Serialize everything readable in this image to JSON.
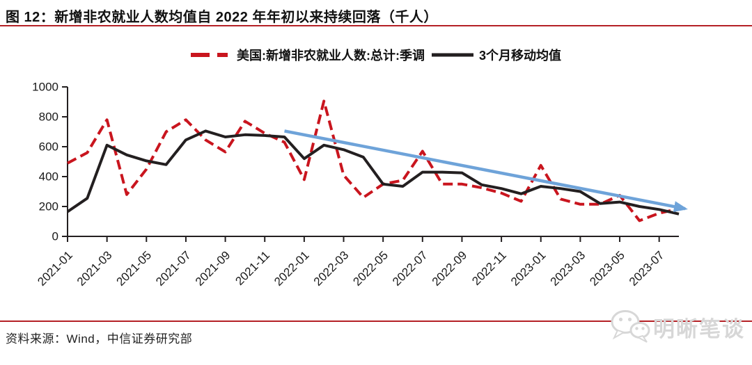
{
  "title": "图 12：新增非农就业人数均值自 2022 年年初以来持续回落（千人）",
  "footer_source": "资料来源：Wind，中信证券研究部",
  "watermark_text": "明晰笔谈",
  "colors": {
    "series_red": "#c9151e",
    "series_black": "#231f20",
    "trend_arrow_blue": "#6ea3d9",
    "rule_red": "#b42025",
    "watermark_gray": "#d7d7d7"
  },
  "chart_data": {
    "type": "line",
    "title": "新增非农就业人数均值自 2022 年年初以来持续回落（千人）",
    "unit": "千人",
    "x": [
      "2021-01",
      "2021-02",
      "2021-03",
      "2021-04",
      "2021-05",
      "2021-06",
      "2021-07",
      "2021-08",
      "2021-09",
      "2021-10",
      "2021-11",
      "2021-12",
      "2022-01",
      "2022-02",
      "2022-03",
      "2022-04",
      "2022-05",
      "2022-06",
      "2022-07",
      "2022-08",
      "2022-09",
      "2022-10",
      "2022-11",
      "2022-12",
      "2023-01",
      "2023-02",
      "2023-03",
      "2023-04",
      "2023-05",
      "2023-06",
      "2023-07",
      "2023-08"
    ],
    "series": [
      {
        "name": "美国:新增非农就业人数:总计:季调",
        "color": "#c9151e",
        "dash": true,
        "values": [
          490,
          560,
          780,
          280,
          450,
          700,
          780,
          645,
          565,
          770,
          690,
          630,
          380,
          905,
          410,
          260,
          350,
          375,
          570,
          350,
          350,
          325,
          290,
          235,
          475,
          250,
          215,
          215,
          275,
          105,
          155,
          185
        ]
      },
      {
        "name": "3个月移动均值",
        "color": "#231f20",
        "dash": false,
        "values": [
          165,
          255,
          610,
          545,
          505,
          480,
          645,
          705,
          665,
          680,
          675,
          665,
          520,
          610,
          580,
          530,
          350,
          335,
          430,
          430,
          425,
          345,
          320,
          285,
          335,
          320,
          300,
          220,
          230,
          200,
          180,
          150
        ]
      }
    ],
    "trend_arrow": {
      "from": {
        "x": "2021-12",
        "y": 705
      },
      "to": {
        "x": "2023-08",
        "y": 185
      },
      "color": "#6ea3d9"
    },
    "ylim": [
      0,
      1000
    ],
    "ytick_step": 200,
    "xticks_every": 2,
    "xtick_labels": [
      "2021-01",
      "2021-03",
      "2021-05",
      "2021-07",
      "2021-09",
      "2021-11",
      "2022-01",
      "2022-03",
      "2022-05",
      "2022-07",
      "2022-09",
      "2022-11",
      "2023-01",
      "2023-03",
      "2023-05",
      "2023-07"
    ],
    "grid": false,
    "legend_position": "top"
  }
}
